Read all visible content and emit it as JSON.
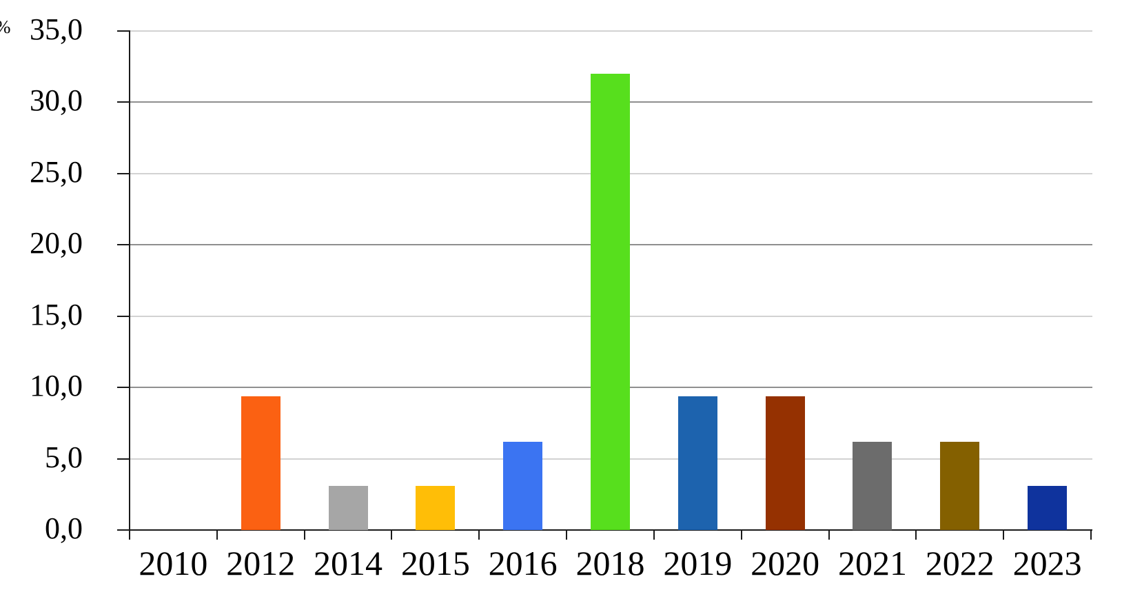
{
  "chart_data": {
    "type": "bar",
    "title": "",
    "xlabel": "",
    "ylabel": "%",
    "categories": [
      "2010",
      "2012",
      "2014",
      "2015",
      "2016",
      "2018",
      "2019",
      "2020",
      "2021",
      "2022",
      "2023"
    ],
    "values": [
      0.0,
      9.4,
      3.1,
      3.1,
      6.2,
      32.0,
      9.4,
      9.4,
      6.2,
      6.2,
      3.1
    ],
    "bar_colors": [
      null,
      "#FB6112",
      "#A6A6A6",
      "#FFBE07",
      "#3B74F2",
      "#57DF1D",
      "#1D63AE",
      "#953101",
      "#6C6C6C",
      "#846000",
      "#0F339D"
    ],
    "ylim": [
      0,
      35
    ],
    "ytick_step": 5,
    "ytick_labels": [
      "0,0",
      "5,0",
      "10,0",
      "15,0",
      "20,0",
      "25,0",
      "30,0",
      "35,0"
    ],
    "grid": true,
    "legend_position": "none"
  },
  "style": {
    "background": "#FFFFFF",
    "axis_color": "#1A1A1A",
    "grid_major_color": "#8F8F8F",
    "grid_minor_color": "#D2D2D2",
    "text_color": "#000000"
  }
}
